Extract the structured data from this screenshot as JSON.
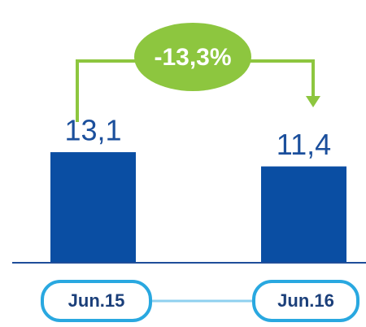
{
  "chart_data": {
    "type": "bar",
    "categories": [
      "Jun.15",
      "Jun.16"
    ],
    "values": [
      13.1,
      11.4
    ],
    "value_labels": [
      "13,1",
      "11,4"
    ],
    "color": "#0a4ea3",
    "annotation": "-13,3%"
  }
}
